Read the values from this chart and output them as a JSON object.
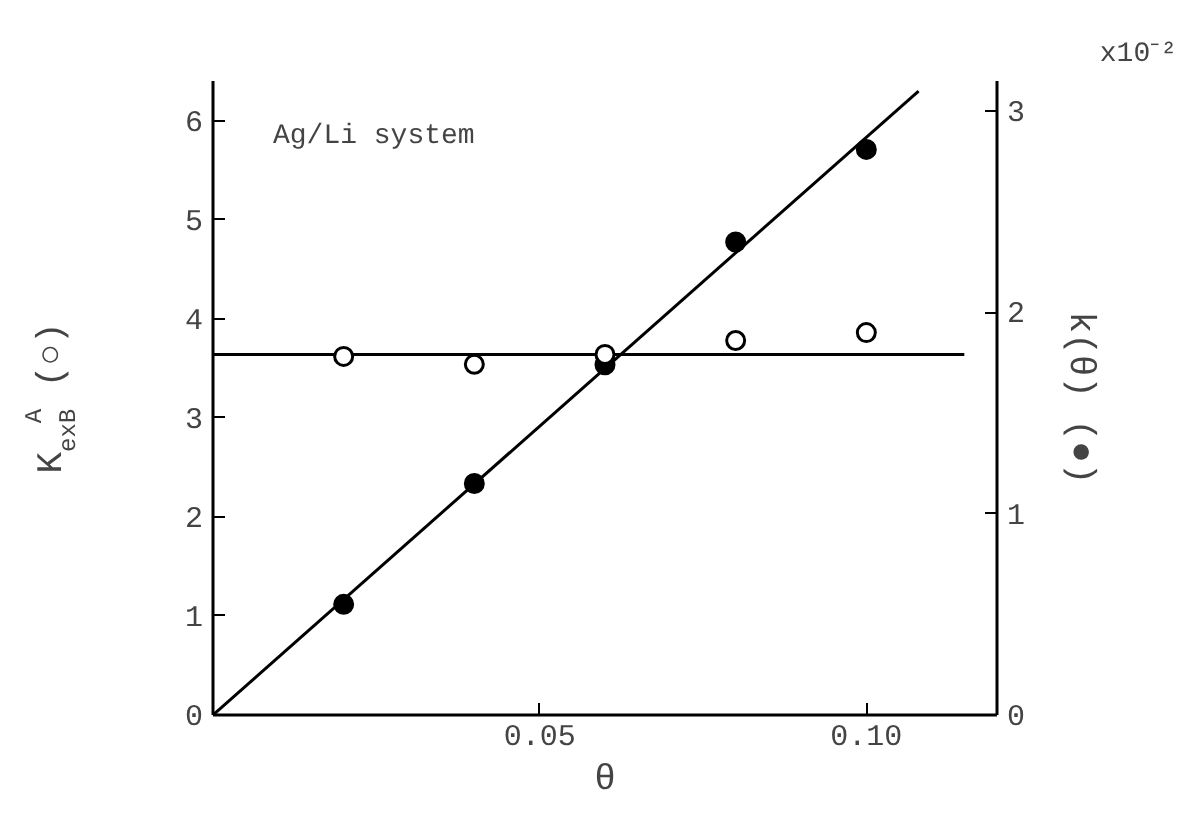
{
  "chart_data": {
    "type": "scatter",
    "xlabel": "θ",
    "ylabel": "K$_{ex}$$^{A}$$_{B}$ (○)",
    "y2label": "k(θ) (●)",
    "annotations": [
      "Ag/Li system",
      "x10⁻²"
    ],
    "xlim": [
      0,
      0.12
    ],
    "xticks": [
      {
        "value": 0.05,
        "label": "0.05"
      },
      {
        "value": 0.1,
        "label": "0.10"
      }
    ],
    "ylim": [
      0,
      6.4
    ],
    "yticks": [
      0,
      1,
      2,
      3,
      4,
      5,
      6
    ],
    "y2lim": [
      0,
      3.15
    ],
    "y2ticks": [
      0,
      1,
      2,
      3
    ],
    "grid": false,
    "series": [
      {
        "marker": "circle",
        "color": "#000000",
        "x": [
          0.02,
          0.04,
          0.06,
          0.08,
          0.1
        ],
        "values": [
          3.62,
          3.54,
          3.64,
          3.78,
          3.86
        ]
      },
      {
        "marker": "circle",
        "axis": "y2",
        "color": "#000000",
        "x": [
          0.02,
          0.04,
          0.06,
          0.08,
          0.1
        ],
        "values": [
          0.55,
          1.15,
          1.74,
          2.35,
          2.81
        ]
      },
      {
        "type": "line",
        "line_style": "solid",
        "color": "#000000",
        "x": [
          0,
          0.115
        ],
        "values": [
          3.64,
          3.64
        ]
      },
      {
        "type": "line",
        "line_style": "solid",
        "axis": "y2",
        "color": "#000000",
        "x": [
          0,
          0.108
        ],
        "values": [
          0,
          3.1
        ]
      }
    ]
  }
}
